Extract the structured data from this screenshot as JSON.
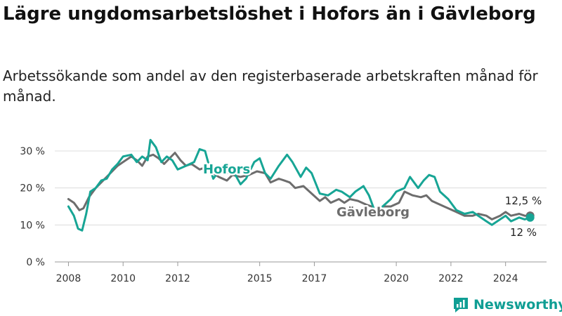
{
  "title": "Lägre ungdomsarbetslöshet i Hofors än i Gävleborg",
  "subtitle": "Arbetssökande som andel av den registerbaserade arbetskraften månad för månad.",
  "brand": {
    "name": "Newsworthy",
    "icon": "newsworthy-logo-icon",
    "color": "#0f9e94"
  },
  "chart_data": {
    "type": "line",
    "title": "Lägre ungdomsarbetslöshet i Hofors än i Gävleborg",
    "subtitle": "Arbetssökande som andel av den registerbaserade arbetskraften månad för månad.",
    "xlabel": "",
    "ylabel": "",
    "ylim": [
      0,
      30
    ],
    "y_ticks": [
      0,
      10,
      20,
      30
    ],
    "y_tick_labels": [
      "0 %",
      "10 %",
      "20 %",
      "30 %"
    ],
    "x_ticks": [
      2008,
      2010,
      2012,
      2015,
      2017,
      2020,
      2022,
      2024
    ],
    "x_range": [
      2007.5,
      2025.5
    ],
    "grid": "horizontal",
    "series": [
      {
        "name": "Hofors",
        "color": "#17a595",
        "end_label": "12 %",
        "points": [
          [
            2008.0,
            15.0
          ],
          [
            2008.2,
            12.5
          ],
          [
            2008.35,
            9.0
          ],
          [
            2008.5,
            8.5
          ],
          [
            2008.65,
            13.0
          ],
          [
            2008.8,
            19.0
          ],
          [
            2009.0,
            20.0
          ],
          [
            2009.2,
            22.0
          ],
          [
            2009.4,
            22.5
          ],
          [
            2009.6,
            25.0
          ],
          [
            2009.8,
            26.5
          ],
          [
            2010.0,
            28.5
          ],
          [
            2010.3,
            29.0
          ],
          [
            2010.5,
            27.0
          ],
          [
            2010.7,
            28.5
          ],
          [
            2010.9,
            27.5
          ],
          [
            2011.0,
            33.0
          ],
          [
            2011.2,
            31.0
          ],
          [
            2011.4,
            27.0
          ],
          [
            2011.6,
            28.5
          ],
          [
            2011.8,
            27.5
          ],
          [
            2012.0,
            25.0
          ],
          [
            2012.3,
            26.0
          ],
          [
            2012.6,
            27.0
          ],
          [
            2012.8,
            30.5
          ],
          [
            2013.0,
            30.0
          ],
          [
            2013.15,
            26.0
          ],
          [
            2013.3,
            22.5
          ],
          [
            2013.5,
            24.5
          ],
          [
            2013.8,
            24.0
          ],
          [
            2014.0,
            25.0
          ],
          [
            2014.3,
            21.0
          ],
          [
            2014.5,
            22.5
          ],
          [
            2014.8,
            27.0
          ],
          [
            2015.0,
            28.0
          ],
          [
            2015.2,
            24.0
          ],
          [
            2015.4,
            22.5
          ],
          [
            2015.7,
            26.0
          ],
          [
            2016.0,
            29.0
          ],
          [
            2016.2,
            27.0
          ],
          [
            2016.5,
            23.0
          ],
          [
            2016.7,
            25.5
          ],
          [
            2016.9,
            24.0
          ],
          [
            2017.2,
            18.5
          ],
          [
            2017.5,
            18.0
          ],
          [
            2017.8,
            19.5
          ],
          [
            2018.0,
            19.0
          ],
          [
            2018.3,
            17.5
          ],
          [
            2018.5,
            19.0
          ],
          [
            2018.8,
            20.5
          ],
          [
            2019.0,
            18.0
          ],
          [
            2019.2,
            14.0
          ],
          null,
          [
            2019.5,
            15.0
          ],
          [
            2019.8,
            17.0
          ],
          [
            2020.0,
            19.0
          ],
          [
            2020.3,
            20.0
          ],
          [
            2020.5,
            23.0
          ],
          [
            2020.8,
            20.0
          ],
          [
            2021.0,
            22.0
          ],
          [
            2021.2,
            23.5
          ],
          [
            2021.4,
            23.0
          ],
          [
            2021.6,
            19.0
          ],
          [
            2021.9,
            17.0
          ],
          [
            2022.2,
            14.0
          ],
          [
            2022.5,
            13.0
          ],
          [
            2022.8,
            13.5
          ],
          [
            2023.0,
            12.5
          ],
          [
            2023.3,
            11.0
          ],
          [
            2023.5,
            10.0
          ],
          [
            2023.8,
            11.5
          ],
          [
            2024.0,
            12.5
          ],
          [
            2024.2,
            11.0
          ],
          [
            2024.5,
            12.0
          ],
          [
            2024.7,
            11.5
          ],
          [
            2024.9,
            12.0
          ]
        ]
      },
      {
        "name": "Gävleborg",
        "color": "#6d6d6d",
        "end_label": "12,5 %",
        "points": [
          [
            2008.0,
            17.0
          ],
          [
            2008.2,
            16.0
          ],
          [
            2008.4,
            14.0
          ],
          [
            2008.55,
            14.5
          ],
          [
            2008.75,
            17.5
          ],
          [
            2009.0,
            20.0
          ],
          [
            2009.2,
            21.5
          ],
          [
            2009.4,
            23.0
          ],
          [
            2009.6,
            24.5
          ],
          [
            2009.8,
            26.0
          ],
          [
            2010.0,
            27.0
          ],
          [
            2010.3,
            28.5
          ],
          [
            2010.5,
            27.5
          ],
          [
            2010.7,
            26.0
          ],
          [
            2010.9,
            28.5
          ],
          [
            2011.1,
            29.0
          ],
          [
            2011.3,
            28.0
          ],
          [
            2011.5,
            26.5
          ],
          [
            2011.7,
            28.0
          ],
          [
            2011.9,
            29.5
          ],
          [
            2012.1,
            27.5
          ],
          [
            2012.3,
            26.0
          ],
          [
            2012.5,
            26.5
          ],
          [
            2012.8,
            25.0
          ],
          [
            2013.0,
            25.5
          ],
          [
            2013.2,
            24.5
          ],
          [
            2013.5,
            23.0
          ],
          [
            2013.8,
            22.0
          ],
          [
            2014.0,
            23.5
          ],
          [
            2014.3,
            23.0
          ],
          [
            2014.6,
            23.5
          ],
          [
            2014.9,
            24.5
          ],
          [
            2015.2,
            24.0
          ],
          [
            2015.4,
            21.5
          ],
          [
            2015.7,
            22.5
          ],
          [
            2015.9,
            22.0
          ],
          [
            2016.1,
            21.5
          ],
          [
            2016.3,
            20.0
          ],
          [
            2016.6,
            20.5
          ],
          [
            2016.9,
            18.5
          ],
          [
            2017.2,
            16.5
          ],
          [
            2017.4,
            17.5
          ],
          [
            2017.6,
            16.0
          ],
          [
            2017.9,
            17.0
          ],
          [
            2018.1,
            16.0
          ],
          [
            2018.3,
            17.0
          ],
          [
            2018.6,
            16.5
          ],
          [
            2018.9,
            15.5
          ],
          [
            2019.1,
            15.0
          ],
          null,
          [
            2019.5,
            15.0
          ],
          [
            2019.8,
            15.0
          ],
          [
            2020.1,
            16.0
          ],
          [
            2020.3,
            19.0
          ],
          [
            2020.6,
            18.0
          ],
          [
            2020.9,
            17.5
          ],
          [
            2021.1,
            18.0
          ],
          [
            2021.3,
            16.5
          ],
          [
            2021.6,
            15.5
          ],
          [
            2021.9,
            14.5
          ],
          [
            2022.2,
            13.5
          ],
          [
            2022.5,
            12.5
          ],
          [
            2022.8,
            12.5
          ],
          [
            2023.0,
            13.0
          ],
          [
            2023.3,
            12.5
          ],
          [
            2023.5,
            11.5
          ],
          [
            2023.8,
            12.5
          ],
          [
            2024.0,
            13.5
          ],
          [
            2024.2,
            12.5
          ],
          [
            2024.5,
            13.0
          ],
          [
            2024.7,
            12.5
          ],
          [
            2024.9,
            12.5
          ]
        ]
      }
    ]
  }
}
